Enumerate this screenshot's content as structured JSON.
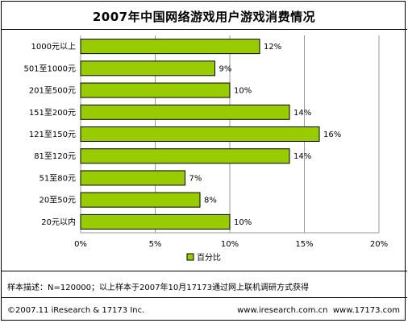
{
  "title": "2007年中国网络游戏用户游戏消费情况",
  "chart_data": {
    "type": "bar",
    "orientation": "horizontal",
    "categories": [
      "1000元以上",
      "501至1000元",
      "201至500元",
      "151至200元",
      "121至150元",
      "81至120元",
      "51至80元",
      "20至50元",
      "20元以内"
    ],
    "series": [
      {
        "name": "百分比",
        "values": [
          12,
          9,
          10,
          14,
          16,
          14,
          7,
          8,
          10
        ],
        "color": "#99cc00"
      }
    ],
    "value_labels": [
      "12%",
      "9%",
      "10%",
      "14%",
      "16%",
      "14%",
      "7%",
      "8%",
      "10%"
    ],
    "xlim": [
      0,
      20
    ],
    "x_ticks": [
      0,
      5,
      10,
      15,
      20
    ],
    "x_tick_labels": [
      "0%",
      "5%",
      "10%",
      "15%",
      "20%"
    ],
    "grid": true,
    "legend_position": "bottom"
  },
  "note": "样本描述：N=120000；以上样本于2007年10月17173通过网上联机调研方式获得",
  "copyright": "©2007.11 iResearch & 17173 Inc.",
  "websites": "www.iresearch.com.cn  www.17173.com"
}
